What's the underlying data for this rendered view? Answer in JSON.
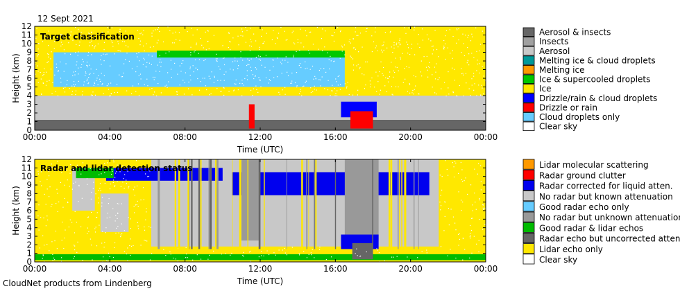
{
  "date_label": "12 Sept 2021",
  "footer": "CloudNet products from Lindenberg",
  "colors": {
    "clear": "#ffffff",
    "cloud_drops": "#66ccff",
    "drizzle": "#ff0000",
    "drizzle_cloud": "#0000ff",
    "ice": "#ffe800",
    "ice_supercooled": "#00c800",
    "melting_ice": "#ff9900",
    "melting_cloud": "#009999",
    "aerosol": "#c8c8c8",
    "insects": "#a0a0a0",
    "aerosol_insects": "#666666",
    "good_radar_lidar": "#00bb00",
    "radar_uncorrected": "#666666",
    "lidar_only": "#ffe800",
    "no_radar_unknown": "#999999",
    "good_radar_only": "#66ccff",
    "no_radar_known": "#c8c8c8",
    "radar_corrected": "#0000ee",
    "ground_clutter": "#ff0000",
    "lidar_molecular": "#ff9900"
  },
  "chart_data": [
    {
      "type": "heatmap",
      "title": "Target classification",
      "xlabel": "Time (UTC)",
      "ylabel": "Height (km)",
      "xticks": [
        "00:00",
        "04:00",
        "08:00",
        "12:00",
        "16:00",
        "20:00",
        "00:00"
      ],
      "yticks": [
        "0",
        "1",
        "2",
        "3",
        "4",
        "5",
        "6",
        "7",
        "8",
        "9",
        "10",
        "11",
        "12"
      ],
      "ylim": [
        0,
        12
      ],
      "xlim_hours": [
        0,
        24
      ],
      "legend": [
        {
          "label": "Aerosol & insects",
          "color": "#666666"
        },
        {
          "label": "Insects",
          "color": "#a0a0a0"
        },
        {
          "label": "Aerosol",
          "color": "#c8c8c8"
        },
        {
          "label": "Melting ice & cloud droplets",
          "color": "#009999"
        },
        {
          "label": "Melting ice",
          "color": "#ff9900"
        },
        {
          "label": "Ice & supercooled droplets",
          "color": "#00c800"
        },
        {
          "label": "Ice",
          "color": "#ffe800"
        },
        {
          "label": "Drizzle/rain & cloud droplets",
          "color": "#0000ff"
        },
        {
          "label": "Drizzle or rain",
          "color": "#ff0000"
        },
        {
          "label": "Cloud droplets only",
          "color": "#66ccff"
        },
        {
          "label": "Clear sky",
          "color": "#ffffff"
        }
      ],
      "regions": [
        {
          "label": "Ice",
          "color": "#ffe800",
          "t0": 0,
          "t1": 24,
          "h0": 4,
          "h1": 12
        },
        {
          "label": "Aerosol",
          "color": "#c8c8c8",
          "t0": 0,
          "t1": 24,
          "h0": 1.2,
          "h1": 4
        },
        {
          "label": "Aerosol & insects",
          "color": "#666666",
          "t0": 0,
          "t1": 24,
          "h0": 0,
          "h1": 1.2
        },
        {
          "label": "Cloud droplets only",
          "color": "#66ccff",
          "t0": 1.0,
          "t1": 16.5,
          "h0": 5,
          "h1": 9
        },
        {
          "label": "Ice & supercooled droplets",
          "color": "#00c800",
          "t0": 6.5,
          "t1": 16.5,
          "h0": 8.4,
          "h1": 9.2
        },
        {
          "label": "Drizzle/rain & cloud droplets",
          "color": "#0000ff",
          "t0": 16.3,
          "t1": 18.2,
          "h0": 1.5,
          "h1": 3.3
        },
        {
          "label": "Drizzle or rain",
          "color": "#ff0000",
          "t0": 16.8,
          "t1": 18.0,
          "h0": 0.2,
          "h1": 2.2
        },
        {
          "label": "Drizzle or rain",
          "color": "#ff0000",
          "t0": 11.4,
          "t1": 11.7,
          "h0": 0.2,
          "h1": 3.0
        }
      ]
    },
    {
      "type": "heatmap",
      "title": "Radar and lidar detection status",
      "xlabel": "Time (UTC)",
      "ylabel": "Height (km)",
      "xticks": [
        "00:00",
        "04:00",
        "08:00",
        "12:00",
        "16:00",
        "20:00",
        "00:00"
      ],
      "yticks": [
        "0",
        "1",
        "2",
        "3",
        "4",
        "5",
        "6",
        "7",
        "8",
        "9",
        "10",
        "11",
        "12"
      ],
      "ylim": [
        0,
        12
      ],
      "xlim_hours": [
        0,
        24
      ],
      "legend": [
        {
          "label": "Lidar molecular scattering",
          "color": "#ff9900"
        },
        {
          "label": "Radar ground clutter",
          "color": "#ff0000"
        },
        {
          "label": "Radar corrected for liquid atten.",
          "color": "#0000ee"
        },
        {
          "label": "No radar but known attenuation",
          "color": "#c8c8c8"
        },
        {
          "label": "Good radar echo only",
          "color": "#66ccff"
        },
        {
          "label": "No radar but unknown attenuation",
          "color": "#999999"
        },
        {
          "label": "Good radar & lidar echos",
          "color": "#00bb00"
        },
        {
          "label": "Radar echo but uncorrected atten.",
          "color": "#666666"
        },
        {
          "label": "Lidar echo only",
          "color": "#ffe800"
        },
        {
          "label": "Clear sky",
          "color": "#ffffff"
        }
      ],
      "regions": [
        {
          "label": "Lidar echo only",
          "color": "#ffe800",
          "t0": 0,
          "t1": 24,
          "h0": 0,
          "h1": 12
        },
        {
          "label": "No radar but known attenuation",
          "color": "#c8c8c8",
          "t0": 6.2,
          "t1": 21.5,
          "h0": 1.8,
          "h1": 12
        },
        {
          "label": "No radar but known attenuation",
          "color": "#c8c8c8",
          "t0": 3.5,
          "t1": 5.0,
          "h0": 3.5,
          "h1": 8
        },
        {
          "label": "No radar but known attenuation",
          "color": "#c8c8c8",
          "t0": 2.0,
          "t1": 3.2,
          "h0": 6.0,
          "h1": 11
        },
        {
          "label": "Radar corrected for liquid atten.",
          "color": "#0000ee",
          "t0": 3.8,
          "t1": 10.0,
          "h0": 9.5,
          "h1": 11.0
        },
        {
          "label": "Radar corrected for liquid atten.",
          "color": "#0000ee",
          "t0": 10.5,
          "t1": 21.0,
          "h0": 7.8,
          "h1": 10.5
        },
        {
          "label": "Good radar & lidar echos",
          "color": "#00bb00",
          "t0": 2.2,
          "t1": 4.2,
          "h0": 9.8,
          "h1": 11.0
        },
        {
          "label": "No radar but unknown attenuation",
          "color": "#999999",
          "t0": 11.0,
          "t1": 12.0,
          "h0": 2.5,
          "h1": 12
        },
        {
          "label": "No radar but unknown attenuation",
          "color": "#999999",
          "t0": 16.5,
          "t1": 18.3,
          "h0": 2.5,
          "h1": 12
        },
        {
          "label": "Radar corrected for liquid atten.",
          "color": "#0000ee",
          "t0": 16.3,
          "t1": 18.3,
          "h0": 1.5,
          "h1": 3.2
        },
        {
          "label": "Good radar & lidar echos",
          "color": "#00bb00",
          "t0": 0,
          "t1": 24,
          "h0": 0.2,
          "h1": 0.9
        },
        {
          "label": "Radar echo but uncorrected atten.",
          "color": "#666666",
          "t0": 16.9,
          "t1": 18.0,
          "h0": 0.3,
          "h1": 2.2
        }
      ]
    }
  ]
}
